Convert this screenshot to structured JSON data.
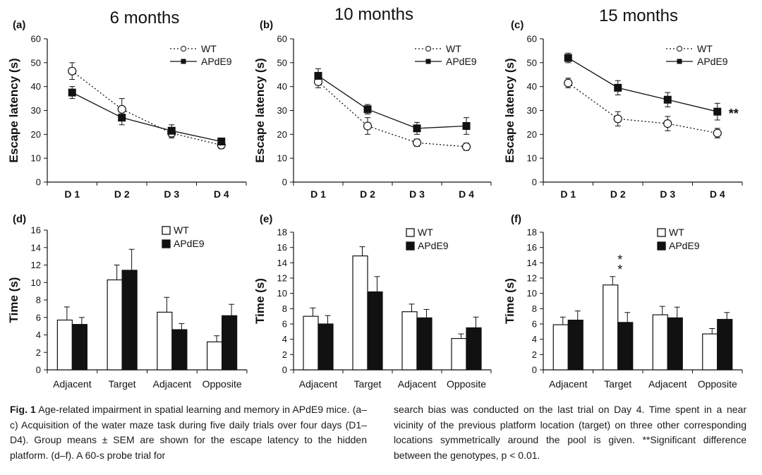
{
  "figure": {
    "panels": [
      {
        "label": "(a)",
        "title": "6 months"
      },
      {
        "label": "(b)",
        "title": "10 months"
      },
      {
        "label": "(c)",
        "title": "15 months"
      },
      {
        "label": "(d)",
        "title": ""
      },
      {
        "label": "(e)",
        "title": ""
      },
      {
        "label": "(f)",
        "title": ""
      }
    ]
  },
  "caption": {
    "label": "Fig. 1",
    "left_text": "Age-related impairment in spatial learning and memory in APdE9 mice. (a–c) Acquisition of the water maze task during five daily trials over four days (D1–D4). Group means ± SEM are shown for the escape latency to the hidden platform. (d–f). A 60-s probe trial for",
    "right_text": "search bias was conducted on the last trial on Day 4. Time spent in a near vicinity of the previous platform location (target) on three other corresponding locations symmetrically around the pool is given. **Significant difference between the genotypes, p < 0.01."
  },
  "chart_data": [
    {
      "type": "line",
      "panel": "(a)",
      "title": "6 months",
      "ylabel": "Escape latency (s)",
      "xlabel": "",
      "categories": [
        "D 1",
        "D 2",
        "D 3",
        "D 4"
      ],
      "ylim": [
        0,
        60
      ],
      "yticks": [
        0,
        10,
        20,
        30,
        40,
        50,
        60
      ],
      "series": [
        {
          "name": "WT",
          "marker": "open-circle",
          "line": "dotted",
          "values": [
            46.5,
            30.5,
            20.5,
            15.5
          ],
          "errors": [
            3.5,
            4.5,
            2,
            1.5
          ]
        },
        {
          "name": "APdE9",
          "marker": "filled-square",
          "line": "solid",
          "values": [
            37.5,
            27,
            21.5,
            17
          ],
          "errors": [
            2.5,
            3,
            2.5,
            1.5
          ]
        }
      ],
      "legend": "top-right",
      "annotation": ""
    },
    {
      "type": "line",
      "panel": "(b)",
      "title": "10 months",
      "ylabel": "Escape latency (s)",
      "xlabel": "",
      "categories": [
        "D 1",
        "D 2",
        "D 3",
        "D 4"
      ],
      "ylim": [
        0,
        60
      ],
      "yticks": [
        0,
        10,
        20,
        30,
        40,
        50,
        60
      ],
      "series": [
        {
          "name": "WT",
          "marker": "open-circle",
          "line": "dotted",
          "values": [
            42,
            23.5,
            16.5,
            14.8
          ],
          "errors": [
            2.5,
            3.5,
            1.5,
            1.5
          ]
        },
        {
          "name": "APdE9",
          "marker": "filled-square",
          "line": "solid",
          "values": [
            44.5,
            30.5,
            22.5,
            23.5
          ],
          "errors": [
            3,
            2,
            2.5,
            3.5
          ]
        }
      ],
      "legend": "top-right",
      "annotation": ""
    },
    {
      "type": "line",
      "panel": "(c)",
      "title": "15 months",
      "ylabel": "Escape latency (s)",
      "xlabel": "",
      "categories": [
        "D 1",
        "D 2",
        "D 3",
        "D 4"
      ],
      "ylim": [
        0,
        60
      ],
      "yticks": [
        0,
        10,
        20,
        30,
        40,
        50,
        60
      ],
      "series": [
        {
          "name": "WT",
          "marker": "open-circle",
          "line": "dotted",
          "values": [
            41.5,
            26.5,
            24.5,
            20.5
          ],
          "errors": [
            2,
            3,
            3,
            2
          ]
        },
        {
          "name": "APdE9",
          "marker": "filled-square",
          "line": "solid",
          "values": [
            52,
            39.5,
            34.5,
            29.5
          ],
          "errors": [
            2,
            3,
            3,
            3.5
          ]
        }
      ],
      "legend": "top-right",
      "annotation": "**"
    },
    {
      "type": "bar",
      "panel": "(d)",
      "title": "",
      "ylabel": "Time (s)",
      "xlabel": "",
      "categories": [
        "Adjacent",
        "Target",
        "Adjacent",
        "Opposite"
      ],
      "ylim": [
        0,
        16
      ],
      "yticks": [
        0,
        2,
        4,
        6,
        8,
        10,
        12,
        14,
        16
      ],
      "series": [
        {
          "name": "WT",
          "fill": "#ffffff",
          "values": [
            5.7,
            10.3,
            6.6,
            3.2
          ],
          "errors": [
            1.5,
            1.7,
            1.7,
            0.7
          ]
        },
        {
          "name": "APdE9",
          "fill": "#111111",
          "values": [
            5.2,
            11.4,
            4.6,
            6.2
          ],
          "errors": [
            0.8,
            2.4,
            0.7,
            1.3
          ]
        }
      ],
      "legend": "top-right",
      "annotation": ""
    },
    {
      "type": "bar",
      "panel": "(e)",
      "title": "",
      "ylabel": "Time (s)",
      "xlabel": "",
      "categories": [
        "Adjacent",
        "Target",
        "Adjacent",
        "Opposite"
      ],
      "ylim": [
        0,
        18
      ],
      "yticks": [
        0,
        2,
        4,
        6,
        8,
        10,
        12,
        14,
        16,
        18
      ],
      "series": [
        {
          "name": "WT",
          "fill": "#ffffff",
          "values": [
            7,
            14.9,
            7.6,
            4.1
          ],
          "errors": [
            1.1,
            1.2,
            1,
            0.6
          ]
        },
        {
          "name": "APdE9",
          "fill": "#111111",
          "values": [
            6,
            10.2,
            6.8,
            5.5
          ],
          "errors": [
            1.1,
            2,
            1.1,
            1.4
          ]
        }
      ],
      "legend": "top-right",
      "annotation": ""
    },
    {
      "type": "bar",
      "panel": "(f)",
      "title": "",
      "ylabel": "Time (s)",
      "xlabel": "",
      "categories": [
        "Adjacent",
        "Target",
        "Adjacent",
        "Opposite"
      ],
      "ylim": [
        0,
        18
      ],
      "yticks": [
        0,
        2,
        4,
        6,
        8,
        10,
        12,
        14,
        16,
        18
      ],
      "series": [
        {
          "name": "WT",
          "fill": "#ffffff",
          "values": [
            5.9,
            11.1,
            7.2,
            4.7
          ],
          "errors": [
            1,
            1.1,
            1.1,
            0.7
          ]
        },
        {
          "name": "APdE9",
          "fill": "#111111",
          "values": [
            6.5,
            6.2,
            6.8,
            6.6
          ],
          "errors": [
            1.2,
            1.3,
            1.4,
            0.9
          ]
        }
      ],
      "legend": "top-right",
      "annotation": "**"
    }
  ]
}
